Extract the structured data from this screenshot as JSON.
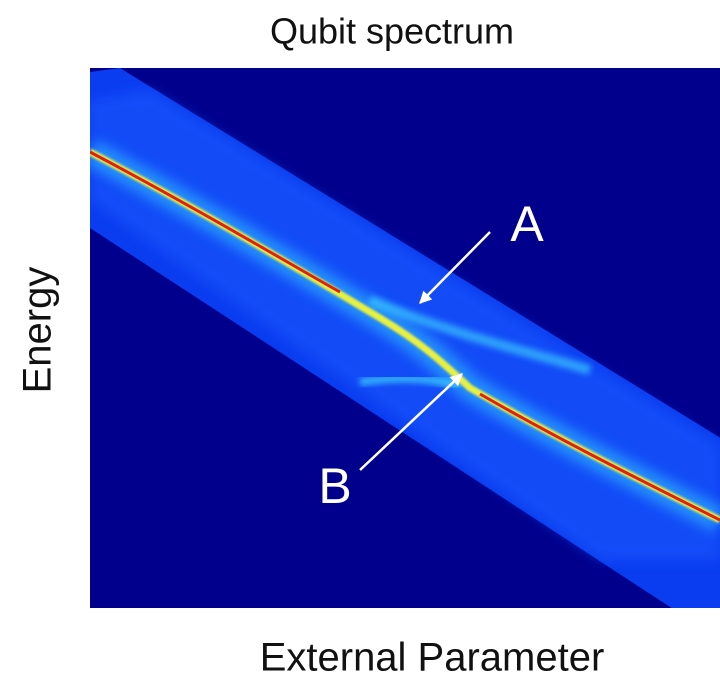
{
  "chart_data": {
    "type": "spectrum-image",
    "title": "Qubit spectrum",
    "x_label": "External Parameter",
    "y_label": "Energy",
    "annotations": [
      "A",
      "B"
    ]
  }
}
